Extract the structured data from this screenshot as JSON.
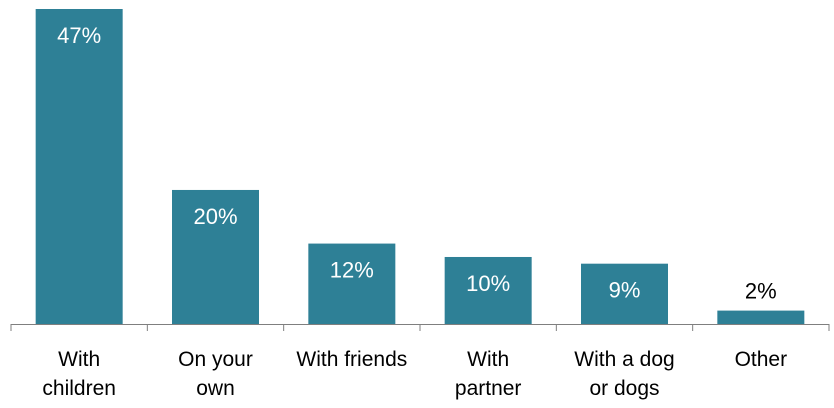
{
  "chart_data": {
    "type": "bar",
    "categories": [
      [
        "With",
        "children"
      ],
      [
        "On your",
        "own"
      ],
      [
        "With friends"
      ],
      [
        "With",
        "partner"
      ],
      [
        "With a dog",
        "or dogs"
      ],
      [
        "Other"
      ]
    ],
    "values": [
      47,
      20,
      12,
      10,
      9,
      2
    ],
    "data_labels": [
      "47%",
      "20%",
      "12%",
      "10%",
      "9%",
      "2%"
    ],
    "ylim": [
      0,
      47
    ],
    "grid": false,
    "legend": "none",
    "bar_color": "#2E8096",
    "inside_label_color": "#ffffff",
    "outside_label_color": "#000000"
  }
}
